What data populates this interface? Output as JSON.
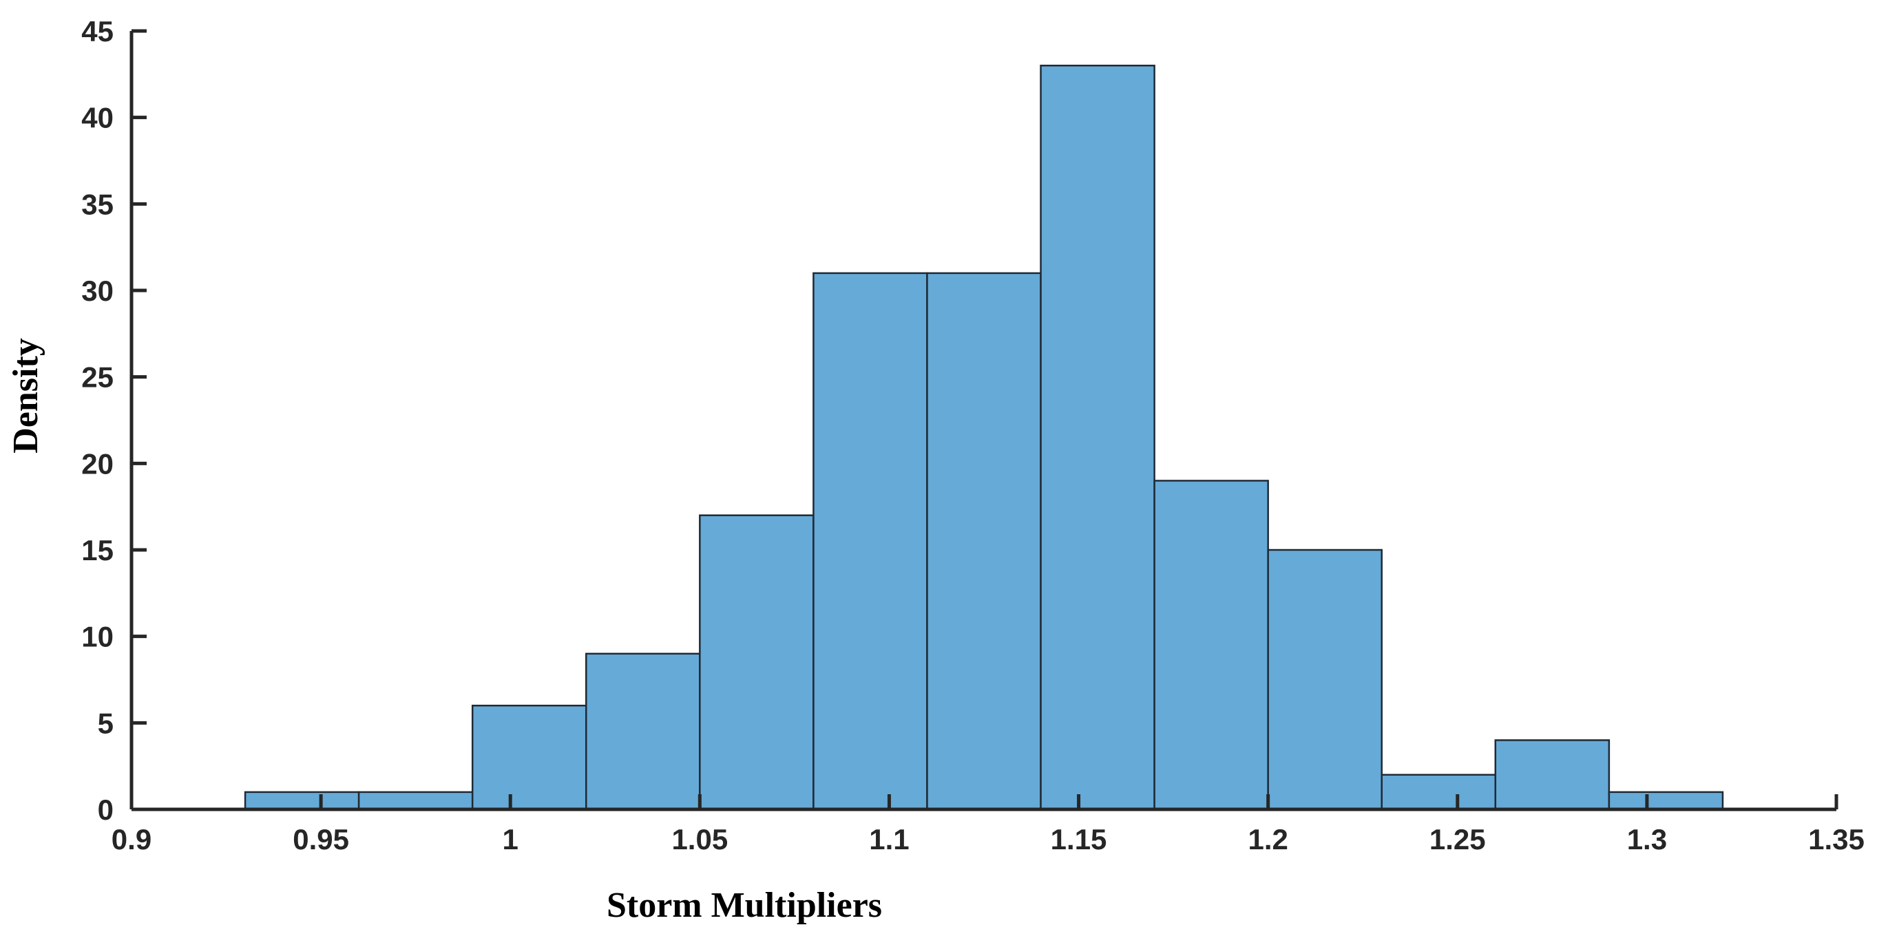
{
  "chart_data": {
    "type": "bar",
    "histogram": true,
    "xlabel": "Storm Multipliers",
    "ylabel": "Density",
    "xlim": [
      0.9,
      1.35
    ],
    "ylim": [
      0,
      45
    ],
    "xticks": [
      0.9,
      0.95,
      1,
      1.05,
      1.1,
      1.15,
      1.2,
      1.25,
      1.3,
      1.35
    ],
    "xtick_labels": [
      "0.9",
      "0.95",
      "1",
      "1.05",
      "1.1",
      "1.15",
      "1.2",
      "1.25",
      "1.3",
      "1.35"
    ],
    "yticks": [
      0,
      5,
      10,
      15,
      20,
      25,
      30,
      35,
      40,
      45
    ],
    "ytick_labels": [
      "0",
      "5",
      "10",
      "15",
      "20",
      "25",
      "30",
      "35",
      "40",
      "45"
    ],
    "bin_edges": [
      0.93,
      0.96,
      0.99,
      1.02,
      1.05,
      1.08,
      1.11,
      1.14,
      1.17,
      1.2,
      1.23,
      1.26,
      1.29,
      1.32
    ],
    "values": [
      1,
      1,
      6,
      9,
      17,
      31,
      31,
      43,
      19,
      15,
      2,
      4,
      1
    ],
    "bar_color": "#66aad7",
    "edge_color": "#1f2a35",
    "grid": false,
    "legend": "none"
  }
}
